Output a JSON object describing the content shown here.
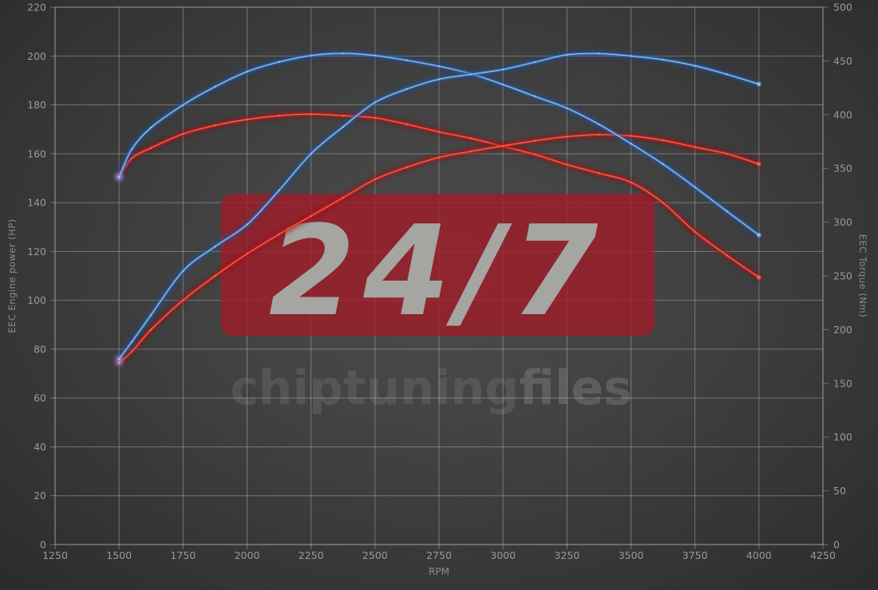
{
  "watermark": {
    "line1": "24/7",
    "line2_bold": "chiptuning",
    "line2_light": "files",
    "box_color": "rgba(160,28,40,0.80)",
    "big_text_color": "#a5a5a2",
    "bold_text_color": "rgba(190,190,190,0.15)",
    "light_text_color": "rgba(210,210,210,0.19)"
  },
  "colors": {
    "background_center": "#4c4c4c",
    "background_edge": "#2b2b2b",
    "grid": "rgba(255,255,255,0.30)",
    "tick_text": "#9a9a9a",
    "blue_glow": "#1d4f96",
    "blue_mid": "#3b79c8",
    "blue_core": "#9ec7ef",
    "red_glow": "#991010",
    "red_mid": "#d42420",
    "red_core": "#ff6a55",
    "start_glow": "#a98fd6",
    "start_core": "#cdb8ea"
  },
  "chart_data": {
    "type": "line",
    "title": "",
    "xlabel": "RPM",
    "x_range": [
      1250,
      4250
    ],
    "x_ticks": [
      1250,
      1500,
      1750,
      2000,
      2250,
      2500,
      2750,
      3000,
      3250,
      3500,
      3750,
      4000,
      4250
    ],
    "left_axis": {
      "label": "EEC Engine power (HP)",
      "min": 0,
      "max": 220,
      "ticks": [
        0,
        20,
        40,
        60,
        80,
        100,
        120,
        140,
        160,
        180,
        200,
        220
      ],
      "grid": true
    },
    "right_axis": {
      "label": "EEC Torque (Nm)",
      "min": 0,
      "max": 500,
      "ticks": [
        0,
        50,
        100,
        150,
        200,
        250,
        300,
        350,
        400,
        450,
        500
      ],
      "grid": false
    },
    "legend": "none",
    "x": [
      1500,
      1550,
      1625,
      1750,
      1875,
      2000,
      2125,
      2250,
      2375,
      2500,
      2625,
      2750,
      2875,
      3000,
      3125,
      3250,
      3375,
      3500,
      3625,
      3750,
      3875,
      4000
    ],
    "series": [
      {
        "name": "red-torque-curve",
        "axis": "right",
        "palette": "red",
        "unit": "Nm",
        "values": [
          342,
          359.5,
          369,
          382,
          390,
          395.5,
          399,
          400.5,
          399,
          397,
          391,
          384,
          378,
          370.5,
          363,
          353.5,
          345.5,
          337,
          318,
          291,
          269,
          248.5
        ]
      },
      {
        "name": "red-power-curve",
        "axis": "left",
        "palette": "red",
        "unit": "HP",
        "values": [
          74.5,
          79,
          88,
          100,
          110,
          119,
          127,
          134.5,
          142,
          149.5,
          154.5,
          158.5,
          161,
          163.2,
          165.3,
          167,
          167.8,
          167.3,
          165.5,
          162.7,
          160,
          155.8
        ]
      },
      {
        "name": "blue-torque-curve",
        "axis": "right",
        "palette": "blue",
        "unit": "Nm",
        "values": [
          342,
          368,
          388,
          409,
          426,
          440,
          449,
          455,
          457,
          455,
          450.5,
          445,
          438,
          428,
          417,
          406,
          391,
          373,
          354,
          332.5,
          310,
          288
        ]
      },
      {
        "name": "blue-power-curve",
        "axis": "left",
        "palette": "blue",
        "unit": "HP",
        "values": [
          76,
          83,
          94,
          112,
          122,
          131,
          145,
          160,
          171,
          181,
          186.5,
          190.5,
          192.5,
          194.5,
          197.5,
          200.5,
          201,
          200,
          198.5,
          196,
          192.5,
          188.5
        ]
      }
    ]
  }
}
